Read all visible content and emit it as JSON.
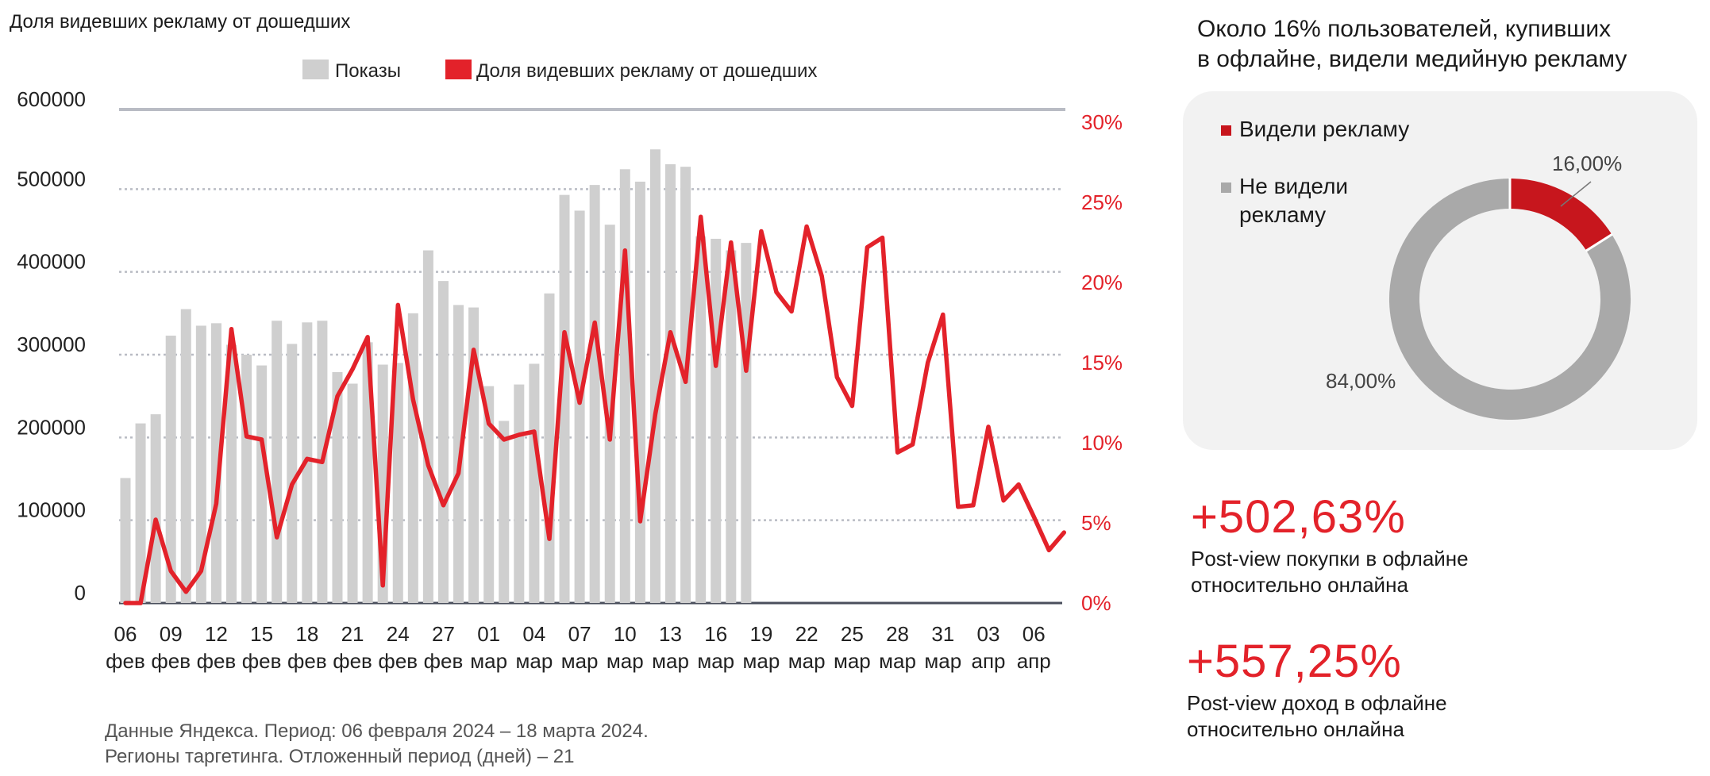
{
  "header": {
    "chart_title": "Доля видевших рекламу от дошедших"
  },
  "footnote": {
    "line1": "Данные Яндекса. Период: 06 февраля 2024 –  18 марта  2024.",
    "line2": "Регионы таргетинга. Отложенный  период (дней) –  21"
  },
  "colors": {
    "bar": "#cfcfcf",
    "line": "#e3222a",
    "grid": "#b9bcc4",
    "pie_seen": "#c7161d",
    "pie_not_seen": "#a9a9a9",
    "card_bg": "#f2f2f2"
  },
  "chart_data": [
    {
      "type": "bar+line",
      "title": "Доля видевших рекламу от дошедших",
      "legend": [
        "Показы",
        "Доля видевших рекламу от дошедших"
      ],
      "legend_position": "top-center",
      "grid": true,
      "x_tick_labels": [
        {
          "day": "06",
          "month": "фев"
        },
        {
          "day": "09",
          "month": "фев"
        },
        {
          "day": "12",
          "month": "фев"
        },
        {
          "day": "15",
          "month": "фев"
        },
        {
          "day": "18",
          "month": "фев"
        },
        {
          "day": "21",
          "month": "фев"
        },
        {
          "day": "24",
          "month": "фев"
        },
        {
          "day": "27",
          "month": "фев"
        },
        {
          "day": "01",
          "month": "мар"
        },
        {
          "day": "04",
          "month": "мар"
        },
        {
          "day": "07",
          "month": "мар"
        },
        {
          "day": "10",
          "month": "мар"
        },
        {
          "day": "13",
          "month": "мар"
        },
        {
          "day": "16",
          "month": "мар"
        },
        {
          "day": "19",
          "month": "мар"
        },
        {
          "day": "22",
          "month": "мар"
        },
        {
          "day": "25",
          "month": "мар"
        },
        {
          "day": "28",
          "month": "мар"
        },
        {
          "day": "31",
          "month": "мар"
        },
        {
          "day": "03",
          "month": "апр"
        },
        {
          "day": "06",
          "month": "апр"
        }
      ],
      "y_left": {
        "ticks": [
          "0",
          "100000",
          "200000",
          "300000",
          "400000",
          "500000",
          "600000"
        ],
        "ylim": [
          0,
          600000
        ]
      },
      "y_right": {
        "ticks": [
          "0%",
          "5%",
          "10%",
          "15%",
          "20%",
          "25%",
          "30%"
        ],
        "ylim": [
          0,
          31
        ]
      },
      "bars": {
        "name": "Показы",
        "dates": [
          "2024-02-06",
          "2024-02-07",
          "2024-02-08",
          "2024-02-09",
          "2024-02-10",
          "2024-02-11",
          "2024-02-12",
          "2024-02-13",
          "2024-02-14",
          "2024-02-15",
          "2024-02-16",
          "2024-02-17",
          "2024-02-18",
          "2024-02-19",
          "2024-02-20",
          "2024-02-21",
          "2024-02-22",
          "2024-02-23",
          "2024-02-24",
          "2024-02-25",
          "2024-02-26",
          "2024-02-27",
          "2024-02-28",
          "2024-02-29",
          "2024-03-01",
          "2024-03-02",
          "2024-03-03",
          "2024-03-04",
          "2024-03-05",
          "2024-03-06",
          "2024-03-07",
          "2024-03-08",
          "2024-03-09",
          "2024-03-10",
          "2024-03-11",
          "2024-03-12",
          "2024-03-13",
          "2024-03-14",
          "2024-03-15",
          "2024-03-16",
          "2024-03-17",
          "2024-03-18"
        ],
        "values": [
          151000,
          217000,
          228000,
          323000,
          355000,
          335000,
          338000,
          312000,
          300000,
          287000,
          341000,
          313000,
          339000,
          341000,
          279000,
          265000,
          315000,
          288000,
          290000,
          350000,
          426000,
          389000,
          360000,
          357000,
          262000,
          220000,
          264000,
          289000,
          374000,
          493000,
          474000,
          505000,
          457000,
          524000,
          509000,
          548000,
          530000,
          527000,
          443000,
          440000,
          426000,
          435000
        ]
      },
      "line": {
        "name": "Доля видевших рекламу от дошедших",
        "dates": [
          "2024-02-06",
          "2024-02-07",
          "2024-02-08",
          "2024-02-09",
          "2024-02-10",
          "2024-02-11",
          "2024-02-12",
          "2024-02-13",
          "2024-02-14",
          "2024-02-15",
          "2024-02-16",
          "2024-02-17",
          "2024-02-18",
          "2024-02-19",
          "2024-02-20",
          "2024-02-21",
          "2024-02-22",
          "2024-02-23",
          "2024-02-24",
          "2024-02-25",
          "2024-02-26",
          "2024-02-27",
          "2024-02-28",
          "2024-02-29",
          "2024-03-01",
          "2024-03-02",
          "2024-03-03",
          "2024-03-04",
          "2024-03-05",
          "2024-03-06",
          "2024-03-07",
          "2024-03-08",
          "2024-03-09",
          "2024-03-10",
          "2024-03-11",
          "2024-03-12",
          "2024-03-13",
          "2024-03-14",
          "2024-03-15",
          "2024-03-16",
          "2024-03-17",
          "2024-03-18",
          "2024-03-19",
          "2024-03-20",
          "2024-03-21",
          "2024-03-22",
          "2024-03-23",
          "2024-03-24",
          "2024-03-25",
          "2024-03-26",
          "2024-03-27",
          "2024-03-28",
          "2024-03-29",
          "2024-03-30",
          "2024-03-31",
          "2024-04-01",
          "2024-04-02",
          "2024-04-03",
          "2024-04-04",
          "2024-04-05",
          "2024-04-06",
          "2024-04-07",
          "2024-04-08"
        ],
        "values": [
          0,
          0,
          5.2,
          2,
          0.7,
          2,
          6.2,
          17.1,
          10.4,
          10.2,
          4.1,
          7.4,
          9,
          8.8,
          12.9,
          14.6,
          16.6,
          1.1,
          18.6,
          12.7,
          8.6,
          6.1,
          8.1,
          15.8,
          11.2,
          10.2,
          10.5,
          10.7,
          4,
          16.9,
          12.5,
          17.5,
          10.2,
          22,
          5.1,
          11.8,
          16.9,
          13.8,
          24.1,
          14.8,
          22.5,
          14.5,
          23.2,
          19.4,
          18.2,
          23.5,
          20.4,
          14.1,
          12.3,
          22.2,
          22.8,
          9.4,
          9.9,
          15,
          18,
          6,
          6.1,
          11,
          6.4,
          7.4,
          5.4,
          3.3,
          4.4
        ]
      }
    },
    {
      "type": "pie",
      "legend": [
        "Видели рекламу",
        "Не видели рекламу"
      ],
      "slices": [
        {
          "name": "Видели рекламу",
          "value": 16,
          "label": "16,00%"
        },
        {
          "name": "Не видели рекламу",
          "value": 84,
          "label": "84,00%"
        }
      ]
    }
  ],
  "sidebar": {
    "title_line1": "Около 16% пользователей, купивших",
    "title_line2": "в офлайне, видели медийную рекламу",
    "legend_seen": "Видели рекламу",
    "legend_not_seen_line1": "Не видели",
    "legend_not_seen_line2": "рекламу",
    "stat1_value": "+502,63%",
    "stat1_desc_line1": "Post-view покупки в офлайне",
    "stat1_desc_line2": "относительно онлайна",
    "stat2_value": "+557,25%",
    "stat2_desc_line1": "Post-view доход в офлайне",
    "stat2_desc_line2": "относительно онлайна"
  }
}
